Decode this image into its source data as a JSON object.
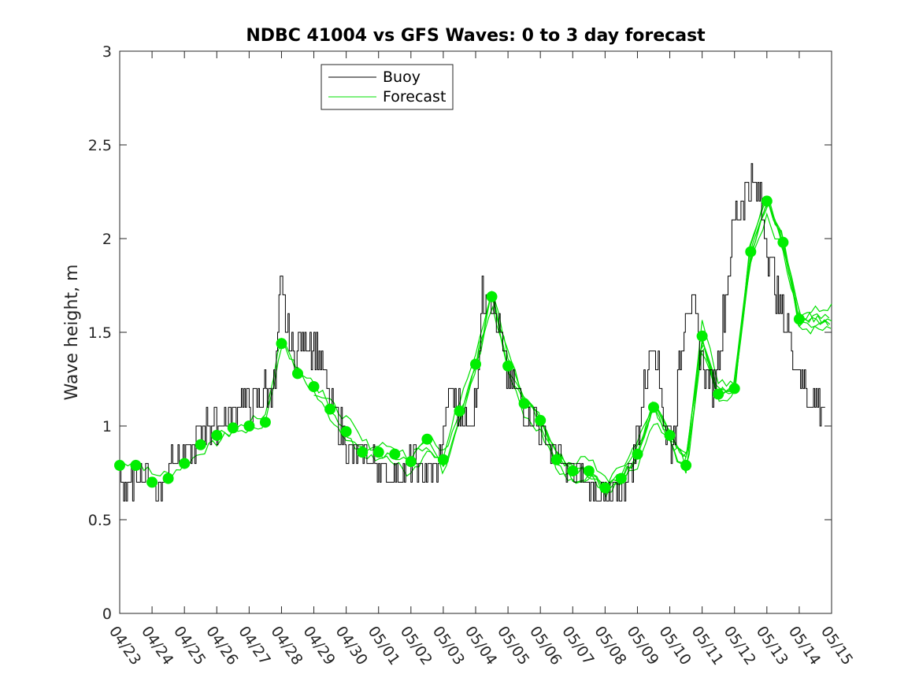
{
  "chart_data": {
    "type": "line",
    "title": "NDBC 41004 vs GFS Waves: 0 to 3 day forecast",
    "xlabel": "",
    "ylabel": "Wave height, m",
    "ylim": [
      0,
      3
    ],
    "yticks": [
      "0",
      "0.5",
      "1",
      "1.5",
      "2",
      "2.5",
      "3"
    ],
    "xlim": [
      "04/23",
      "05/15"
    ],
    "xticks": [
      "04/23",
      "04/24",
      "04/25",
      "04/26",
      "04/27",
      "04/28",
      "04/29",
      "04/30",
      "05/01",
      "05/02",
      "05/03",
      "05/04",
      "05/05",
      "05/06",
      "05/07",
      "05/08",
      "05/09",
      "05/10",
      "05/11",
      "05/12",
      "05/13",
      "05/14",
      "05/15"
    ],
    "grid": false,
    "legend": {
      "placement": "top-left",
      "entries": [
        "Buoy",
        "Forecast"
      ]
    },
    "colors": {
      "buoy": "#000000",
      "forecast": "#00e000",
      "marker": "#00ee00"
    },
    "buoy_anchors": {
      "x": [
        0,
        0.2,
        0.5,
        0.8,
        1.0,
        1.2,
        1.4,
        1.6,
        1.8,
        2.0,
        2.3,
        2.6,
        3.0,
        3.3,
        3.6,
        3.8,
        4.0,
        4.3,
        4.6,
        4.8,
        4.95,
        5.1,
        5.3,
        5.6,
        5.9,
        6.2,
        6.5,
        6.8,
        7.1,
        7.4,
        7.7,
        8.0,
        8.3,
        8.6,
        9.0,
        9.4,
        9.8,
        10.2,
        10.4,
        10.6,
        10.8,
        11.0,
        11.2,
        11.35,
        11.5,
        11.7,
        11.9,
        12.1,
        12.4,
        12.7,
        13.0,
        13.3,
        13.6,
        13.9,
        14.2,
        14.5,
        14.8,
        15.0,
        15.3,
        15.6,
        15.9,
        16.2,
        16.5,
        16.7,
        16.9,
        17.1,
        17.3,
        17.5,
        17.7,
        17.9,
        18.1,
        18.3,
        18.6,
        18.9,
        19.2,
        19.5,
        19.8,
        20.0,
        20.2,
        20.4,
        20.6,
        20.8,
        21.0,
        21.2,
        21.4,
        21.6,
        21.8
      ],
      "y": [
        0.75,
        0.65,
        0.75,
        0.75,
        0.72,
        0.65,
        0.7,
        0.85,
        0.82,
        0.85,
        0.88,
        1.0,
        1.0,
        1.05,
        1.1,
        1.15,
        1.1,
        1.15,
        1.2,
        1.25,
        1.75,
        1.6,
        1.4,
        1.45,
        1.45,
        1.35,
        1.1,
        1.0,
        0.88,
        0.82,
        0.82,
        0.78,
        0.72,
        0.72,
        0.8,
        0.75,
        0.75,
        1.2,
        1.1,
        1.05,
        1.0,
        1.15,
        1.65,
        1.8,
        1.65,
        1.5,
        1.3,
        1.25,
        1.1,
        1.05,
        1.0,
        0.9,
        0.8,
        0.78,
        0.72,
        0.7,
        0.68,
        0.62,
        0.62,
        0.7,
        0.85,
        1.2,
        1.5,
        1.2,
        0.95,
        0.9,
        1.3,
        1.7,
        1.6,
        1.45,
        1.3,
        1.2,
        1.5,
        2.0,
        2.2,
        2.3,
        2.2,
        2.0,
        1.8,
        1.6,
        1.55,
        1.4,
        1.3,
        1.2,
        1.15,
        1.12,
        1.1
      ]
    },
    "forecast_markers": {
      "x": [
        0,
        0.5,
        1.0,
        1.5,
        2.0,
        2.5,
        3.0,
        3.5,
        4.0,
        4.5,
        5.0,
        5.5,
        6.0,
        6.5,
        7.0,
        7.5,
        8.0,
        8.5,
        9.0,
        9.5,
        10.0,
        10.5,
        11.0,
        11.5,
        12.0,
        12.5,
        13.0,
        13.5,
        14.0,
        14.5,
        15.0,
        15.5,
        16.0,
        16.5,
        17.0,
        17.5,
        18.0,
        18.5,
        19.0,
        19.5,
        20.0,
        20.5,
        21.0
      ],
      "y": [
        0.79,
        0.79,
        0.7,
        0.72,
        0.8,
        0.9,
        0.95,
        0.99,
        1.0,
        1.02,
        1.44,
        1.28,
        1.21,
        1.09,
        0.97,
        0.86,
        0.86,
        0.85,
        0.81,
        0.93,
        0.82,
        1.08,
        1.33,
        1.69,
        1.32,
        1.12,
        1.03,
        0.82,
        0.76,
        0.76,
        0.67,
        0.72,
        0.85,
        1.1,
        0.95,
        0.79,
        1.48,
        1.17,
        1.2,
        1.93,
        2.2,
        1.98,
        1.57
      ]
    },
    "forecast_run_offsets": [
      0.04,
      -0.03,
      0.07,
      -0.06,
      0.02,
      -0.01
    ]
  }
}
